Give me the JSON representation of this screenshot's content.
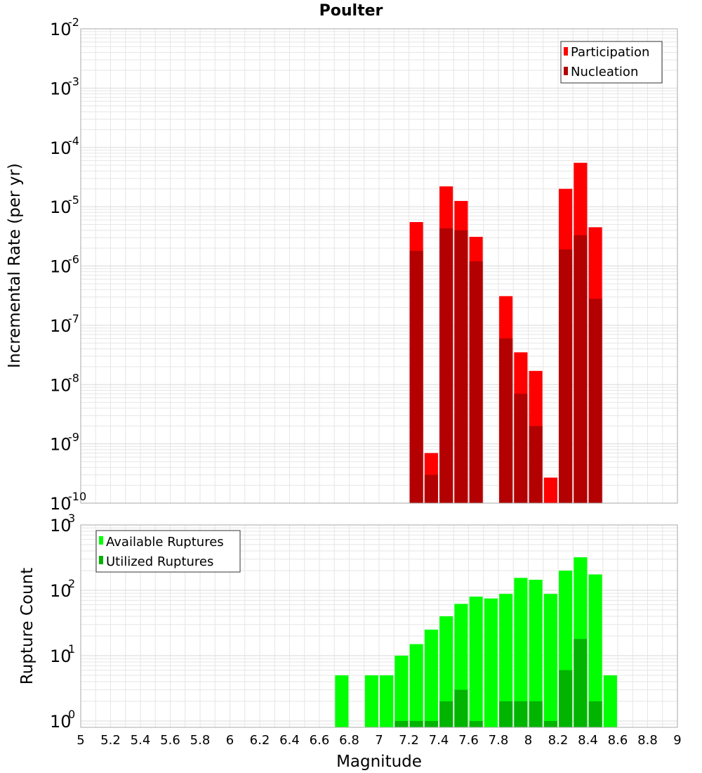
{
  "title": "Poulter",
  "xlabel": "Magnitude",
  "colors": {
    "participation": "#ff0000",
    "nucleation": "#b30000",
    "available": "#00ff00",
    "utilized": "#00b400",
    "grid": "#e6e6e6",
    "frame": "#aaaaaa"
  },
  "chart_data": [
    {
      "type": "bar",
      "scale": "log",
      "ylabel": "Incremental Rate (per yr)",
      "xlim": [
        5,
        9
      ],
      "ylim": [
        1e-10,
        0.01
      ],
      "x_ticks": [
        "5",
        "5.2",
        "5.4",
        "5.6",
        "5.8",
        "6",
        "6.2",
        "6.4",
        "6.6",
        "6.8",
        "7",
        "7.2",
        "7.4",
        "7.6",
        "7.8",
        "8",
        "8.2",
        "8.4",
        "8.6",
        "8.8",
        "9"
      ],
      "y_ticks": [
        {
          "base": "10",
          "exp": "-10"
        },
        {
          "base": "10",
          "exp": "-9"
        },
        {
          "base": "10",
          "exp": "-8"
        },
        {
          "base": "10",
          "exp": "-7"
        },
        {
          "base": "10",
          "exp": "-6"
        },
        {
          "base": "10",
          "exp": "-5"
        },
        {
          "base": "10",
          "exp": "-4"
        },
        {
          "base": "10",
          "exp": "-3"
        },
        {
          "base": "10",
          "exp": "-2"
        }
      ],
      "legend_position": "top-right",
      "x": [
        7.25,
        7.35,
        7.45,
        7.55,
        7.65,
        7.85,
        7.95,
        8.05,
        8.15,
        8.25,
        8.35,
        8.45
      ],
      "series": [
        {
          "name": "Participation",
          "values": [
            5.5e-06,
            7e-10,
            2.2e-05,
            1.25e-05,
            3.1e-06,
            3.1e-07,
            3.5e-08,
            1.7e-08,
            2.7e-10,
            2e-05,
            5.5e-05,
            4.5e-06
          ]
        },
        {
          "name": "Nucleation",
          "values": [
            1.8e-06,
            3e-10,
            4.3e-06,
            4e-06,
            1.2e-06,
            6e-08,
            7e-09,
            2e-09,
            null,
            1.9e-06,
            3.3e-06,
            2.8e-07
          ]
        }
      ]
    },
    {
      "type": "bar",
      "scale": "log",
      "ylabel": "Rupture Count",
      "xlim": [
        5,
        9
      ],
      "ylim": [
        0.8,
        1000
      ],
      "y_ticks": [
        {
          "base": "10",
          "exp": "0"
        },
        {
          "base": "10",
          "exp": "1"
        },
        {
          "base": "10",
          "exp": "2"
        },
        {
          "base": "10",
          "exp": "3"
        }
      ],
      "legend_position": "top-left",
      "x": [
        6.75,
        6.95,
        7.05,
        7.15,
        7.25,
        7.35,
        7.45,
        7.55,
        7.65,
        7.75,
        7.85,
        7.95,
        8.05,
        8.15,
        8.25,
        8.35,
        8.45,
        8.55
      ],
      "series": [
        {
          "name": "Available Ruptures",
          "values": [
            5,
            5,
            5,
            10,
            15,
            25,
            40,
            62,
            80,
            75,
            88,
            155,
            145,
            88,
            200,
            320,
            175,
            5
          ]
        },
        {
          "name": "Utilized Ruptures",
          "values": [
            null,
            null,
            null,
            1,
            1,
            1,
            2,
            3,
            1,
            null,
            2,
            2,
            2,
            1,
            6,
            18,
            2,
            null
          ]
        }
      ]
    }
  ]
}
